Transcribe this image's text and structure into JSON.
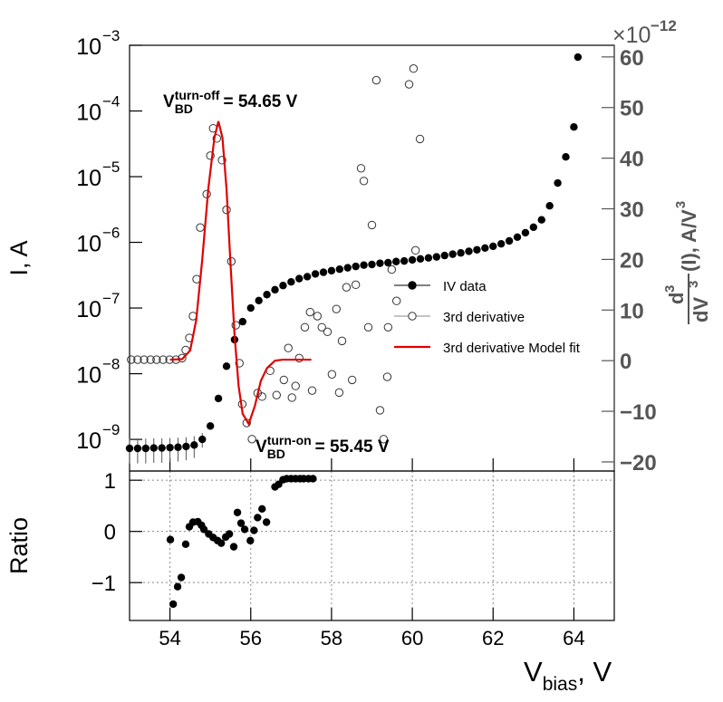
{
  "chart_data": [
    {
      "type": "scatter",
      "xlim": [
        53,
        65
      ],
      "xticks": [
        54,
        56,
        58,
        60,
        62,
        64
      ],
      "ylim": [
        3.3e-10,
        0.001
      ],
      "log_y": true,
      "yticks": [
        {
          "value": 1e-09,
          "label": "10",
          "exponent": "−9"
        },
        {
          "value": 1e-08,
          "label": "10",
          "exponent": "−8"
        },
        {
          "value": 1e-07,
          "label": "10",
          "exponent": "−7"
        },
        {
          "value": 1e-06,
          "label": "10",
          "exponent": "−6"
        },
        {
          "value": 1e-05,
          "label": "10",
          "exponent": "−5"
        },
        {
          "value": 0.0001,
          "label": "10",
          "exponent": "−4"
        },
        {
          "value": 0.001,
          "label": "10",
          "exponent": "−3"
        }
      ],
      "ylabel": "I, A",
      "y2lim": [
        -21.8,
        62.3
      ],
      "y2ticks": [
        {
          "value": -20,
          "label": "−20"
        },
        {
          "value": -10,
          "label": "−10"
        },
        0,
        10,
        20,
        30,
        40,
        50,
        60
      ],
      "y2_multiplier": {
        "base": "×10",
        "exponent": "−12"
      },
      "y2label": {
        "numerator": "d",
        "numerator_sup": "3",
        "denominator": "dV",
        "denominator_sup": "3",
        "text": "(I), A/V",
        "text_sup": "3"
      },
      "legend": "center-right",
      "annotations": [
        {
          "symbol": "V",
          "subscript": "BD",
          "superscript": "turn-off",
          "text": "= 54.65 V"
        },
        {
          "symbol": "V",
          "subscript": "BD",
          "superscript": "turn-on",
          "text": "= 55.45 V"
        }
      ],
      "series": [
        {
          "name": "IV data",
          "color": "#000000",
          "marker": "filled",
          "x": [
            53.0,
            53.2,
            53.4,
            53.6,
            53.8,
            54.0,
            54.2,
            54.4,
            54.6,
            54.8,
            55.0,
            55.2,
            55.4,
            55.6,
            55.8,
            56.0,
            56.2,
            56.4,
            56.6,
            56.8,
            57.0,
            57.2,
            57.4,
            57.6,
            57.8,
            58.0,
            58.2,
            58.4,
            58.6,
            58.8,
            59.0,
            59.2,
            59.4,
            59.6,
            59.8,
            60.0,
            60.2,
            60.4,
            60.6,
            60.8,
            61.0,
            61.2,
            61.4,
            61.6,
            61.8,
            62.0,
            62.2,
            62.4,
            62.6,
            62.8,
            63.0,
            63.2,
            63.4,
            63.6,
            63.8,
            64.0,
            64.1
          ],
          "values": [
            7.3e-10,
            7.3e-10,
            7.3e-10,
            7.4e-10,
            7.4e-10,
            7.5e-10,
            7.6e-10,
            7.8e-10,
            8.2e-10,
            1e-09,
            1.6e-09,
            4.2e-09,
            1.3e-08,
            3.3e-08,
            6.2e-08,
            1e-07,
            1.3e-07,
            1.6e-07,
            1.9e-07,
            2.2e-07,
            2.5e-07,
            2.8e-07,
            3e-07,
            3.3e-07,
            3.5e-07,
            3.7e-07,
            3.9e-07,
            4.1e-07,
            4.3e-07,
            4.5e-07,
            4.6e-07,
            4.8e-07,
            4.9e-07,
            5.1e-07,
            5.2e-07,
            5.4e-07,
            5.6e-07,
            5.8e-07,
            6e-07,
            6.3e-07,
            6.6e-07,
            6.9e-07,
            7.3e-07,
            7.7e-07,
            8.2e-07,
            8.7e-07,
            9.5e-07,
            1.05e-06,
            1.2e-06,
            1.4e-06,
            1.7e-06,
            2.2e-06,
            3.6e-06,
            8e-06,
            2e-05,
            5.7e-05,
            0.00066
          ],
          "errors": [
            3e-10,
            3e-10,
            3e-10,
            3e-10,
            3e-10,
            3e-10,
            3e-10,
            3e-10,
            3e-10,
            2.5e-10,
            2e-10,
            null,
            null,
            null,
            null,
            null,
            null,
            null,
            null,
            null,
            null,
            null,
            null,
            null,
            null,
            null,
            null,
            null,
            null,
            null,
            null,
            null,
            null,
            null,
            null,
            null,
            null,
            null,
            null,
            null,
            null,
            null,
            null,
            null,
            null,
            null,
            null,
            null,
            null,
            null,
            null,
            null,
            null,
            null,
            null,
            null,
            null
          ]
        },
        {
          "name": "3rd derivative",
          "color": "#333333",
          "marker": "open",
          "axis": "y2",
          "x": [
            53.04,
            53.2,
            53.36,
            53.52,
            53.67,
            53.83,
            53.99,
            54.15,
            54.3,
            54.39,
            54.48,
            54.57,
            54.66,
            54.75,
            54.91,
            55.0,
            55.07,
            55.16,
            55.29,
            55.4,
            55.52,
            55.63,
            55.72,
            55.79,
            55.9,
            56.03,
            56.17,
            56.28,
            56.48,
            56.64,
            56.82,
            56.93,
            57.02,
            57.11,
            57.2,
            57.34,
            57.47,
            57.52,
            57.65,
            57.76,
            57.9,
            58.01,
            58.12,
            58.19,
            58.26,
            58.37,
            58.51,
            58.6,
            58.73,
            58.8,
            58.91,
            59.0,
            59.11,
            59.2,
            59.29,
            59.38,
            59.4,
            59.49,
            59.61,
            59.92,
            60.03,
            60.08,
            60.19
          ],
          "values": [
            0.2,
            0.2,
            0.2,
            0.2,
            0.2,
            0.2,
            0.2,
            0.2,
            0.5,
            2.1,
            4.5,
            8.8,
            16.1,
            26.3,
            32.9,
            40.5,
            45.9,
            43.9,
            39.6,
            29.8,
            19.6,
            7.0,
            -0.5,
            -8.6,
            -12.3,
            -15.5,
            -6.4,
            -7.1,
            -2.0,
            -6.8,
            -3.8,
            2.5,
            -7.3,
            -5.0,
            0.5,
            6.6,
            9.6,
            -5.9,
            8.8,
            6.6,
            5.7,
            -2.7,
            10.2,
            -6.3,
            3.9,
            14.5,
            -3.8,
            15.0,
            38.0,
            35.5,
            6.6,
            26.8,
            55.4,
            -9.8,
            -15.5,
            -3.2,
            6.6,
            18.0,
            11.8,
            54.6,
            57.7,
            21.8,
            43.8
          ]
        },
        {
          "name": "3rd derivative Model fit",
          "color": "#e00000",
          "marker": "line",
          "axis": "y2",
          "x": [
            54.0,
            54.3,
            54.5,
            54.65,
            54.8,
            54.95,
            55.1,
            55.2,
            55.3,
            55.4,
            55.5,
            55.6,
            55.7,
            55.8,
            55.95,
            56.1,
            56.25,
            56.4,
            56.6,
            56.8,
            57.5
          ],
          "values": [
            0.2,
            0.3,
            2,
            8,
            20,
            34,
            44,
            47.3,
            44,
            34,
            19,
            5,
            -5,
            -10.5,
            -12.5,
            -9,
            -4,
            -1.5,
            0,
            0.2,
            0.2
          ]
        }
      ]
    },
    {
      "type": "scatter",
      "xlim": [
        53,
        65
      ],
      "xticks": [
        54,
        56,
        58,
        60,
        62,
        64
      ],
      "xlabel": {
        "symbol": "V",
        "subscript": "bias",
        "text": ", V"
      },
      "ylim": [
        -1.74,
        1.18
      ],
      "yticks": [
        {
          "value": -1,
          "label": "−1"
        },
        0,
        1
      ],
      "ylabel": "Ratio",
      "grid": true,
      "series": [
        {
          "color": "#000000",
          "marker": "filled",
          "x": [
            54.01,
            54.08,
            54.19,
            54.28,
            54.39,
            54.48,
            54.57,
            54.69,
            54.78,
            54.84,
            54.96,
            55.07,
            55.18,
            55.27,
            55.38,
            55.47,
            55.58,
            55.67,
            55.76,
            55.85,
            55.99,
            56.08,
            56.17,
            56.28,
            56.39,
            56.6,
            56.69,
            56.8,
            56.89,
            57.0,
            57.11,
            57.22,
            57.31,
            57.43,
            57.54
          ],
          "values": [
            -0.16,
            -1.42,
            -1.08,
            -0.9,
            -0.25,
            0.09,
            0.18,
            0.19,
            0.12,
            0.04,
            -0.05,
            -0.12,
            -0.18,
            -0.23,
            -0.11,
            -0.05,
            -0.3,
            0.37,
            0.16,
            0.04,
            -0.18,
            0.02,
            0.27,
            0.44,
            0.18,
            0.87,
            0.92,
            1.01,
            1.03,
            1.03,
            1.03,
            1.03,
            1.03,
            1.03,
            1.03
          ]
        }
      ]
    }
  ]
}
